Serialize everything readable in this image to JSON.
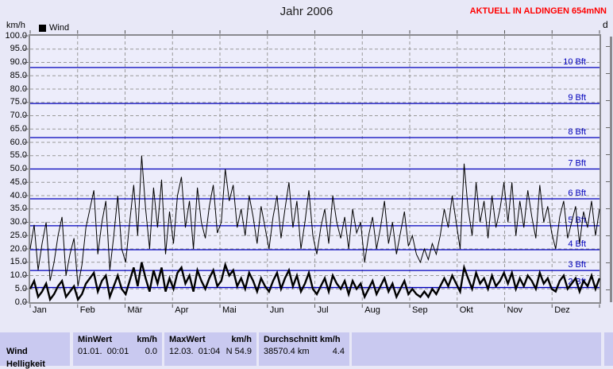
{
  "header": {
    "title": "Jahr 2006",
    "status": "AKTUELL IN ALDINGEN 654mNN",
    "status_color": "#FF0000"
  },
  "adjacent": {
    "label": "d"
  },
  "colors": {
    "background": "#E8E8F7",
    "plot_background": "#EDEDFB",
    "plot_border": "#8a8a8f",
    "grid": "#9a9a9a",
    "beaufort_blue": "#0000BB",
    "series": "#000000",
    "table_cell": "#C9C9F0"
  },
  "chart_data": {
    "type": "line",
    "title": "Jahr 2006",
    "ylabel": "km/h",
    "ylim": [
      0,
      100
    ],
    "y_tick_step": 5,
    "y_tick_labels": [
      "100.0",
      "95.0",
      "90.0",
      "85.0",
      "80.0",
      "75.0",
      "70.0",
      "65.0",
      "60.0",
      "55.0",
      "50.0",
      "45.0",
      "40.0",
      "35.0",
      "30.0",
      "25.0",
      "20.0",
      "15.0",
      "10.0",
      "5.0",
      "0.0"
    ],
    "x_categories": [
      "Jan",
      "Feb",
      "Mär",
      "Apr",
      "Mai",
      "Jun",
      "Jul",
      "Aug",
      "Sep",
      "Okt",
      "Nov",
      "Dez"
    ],
    "grid": "dashed",
    "legend_label": "Wind",
    "legend_position": "top-left",
    "beaufort_lines": [
      {
        "label": "2 Bft",
        "kmh": 5.5
      },
      {
        "label": "3 Bft",
        "kmh": 11.9
      },
      {
        "label": "4 Bft",
        "kmh": 19.7
      },
      {
        "label": "5 Bft",
        "kmh": 28.7
      },
      {
        "label": "6 Bft",
        "kmh": 38.8
      },
      {
        "label": "7 Bft",
        "kmh": 50.0
      },
      {
        "label": "8 Bft",
        "kmh": 61.8
      },
      {
        "label": "9 Bft",
        "kmh": 74.6
      },
      {
        "label": "10 Bft",
        "kmh": 88.1
      }
    ],
    "series": [
      {
        "name": "wind-peak",
        "stroke_width": 1,
        "color": "#000000",
        "values": [
          20,
          29,
          12,
          22,
          30,
          8,
          15,
          25,
          32,
          10,
          18,
          24,
          6,
          14,
          28,
          35,
          42,
          18,
          30,
          38,
          12,
          25,
          40,
          20,
          15,
          30,
          44,
          25,
          55,
          35,
          20,
          43,
          28,
          46,
          18,
          34,
          22,
          40,
          47,
          28,
          38,
          20,
          43,
          30,
          24,
          36,
          44,
          26,
          30,
          50,
          38,
          44,
          28,
          35,
          25,
          40,
          32,
          22,
          36,
          28,
          20,
          32,
          40,
          24,
          35,
          45,
          28,
          38,
          20,
          30,
          42,
          25,
          18,
          28,
          35,
          22,
          40,
          30,
          24,
          32,
          20,
          35,
          26,
          30,
          15,
          25,
          32,
          20,
          28,
          38,
          22,
          30,
          18,
          26,
          34,
          21,
          25,
          18,
          15,
          20,
          16,
          22,
          18,
          25,
          35,
          28,
          40,
          30,
          20,
          52,
          35,
          25,
          45,
          30,
          38,
          24,
          40,
          28,
          35,
          45,
          30,
          45,
          25,
          38,
          28,
          42,
          32,
          24,
          44,
          30,
          36,
          26,
          20,
          32,
          38,
          24,
          30,
          36,
          22,
          34,
          28,
          38,
          25,
          35
        ]
      },
      {
        "name": "wind-average",
        "stroke_width": 2.4,
        "color": "#000000",
        "values": [
          5,
          8,
          2,
          4,
          7,
          1,
          3,
          6,
          8,
          2,
          4,
          6,
          1,
          3,
          7,
          9,
          11,
          4,
          8,
          10,
          2,
          6,
          10,
          5,
          3,
          8,
          13,
          6,
          15,
          9,
          4,
          12,
          7,
          13,
          4,
          9,
          5,
          11,
          13,
          7,
          10,
          4,
          12,
          8,
          5,
          9,
          12,
          6,
          8,
          14,
          10,
          12,
          6,
          9,
          5,
          11,
          8,
          4,
          9,
          6,
          4,
          8,
          11,
          5,
          9,
          12,
          6,
          10,
          4,
          7,
          11,
          5,
          3,
          6,
          9,
          4,
          10,
          7,
          5,
          8,
          3,
          8,
          5,
          7,
          2,
          5,
          8,
          3,
          6,
          9,
          4,
          7,
          2,
          5,
          8,
          3,
          5,
          3,
          2,
          4,
          2,
          5,
          3,
          6,
          9,
          6,
          10,
          7,
          4,
          13,
          9,
          5,
          11,
          7,
          9,
          5,
          10,
          6,
          8,
          11,
          7,
          11,
          5,
          9,
          6,
          10,
          8,
          5,
          11,
          7,
          9,
          5,
          4,
          8,
          10,
          5,
          7,
          9,
          4,
          8,
          6,
          10,
          5,
          9
        ]
      }
    ]
  },
  "summary_table": {
    "rows": [
      {
        "label": "Wind"
      },
      {
        "label": "Helligkeit"
      }
    ],
    "min_header": "MinWert",
    "min_unit": "km/h",
    "min_date": "01.01.  00:01",
    "min_value": "0.0",
    "max_header": "MaxWert",
    "max_unit": "km/h",
    "max_date": "12.03.  01:04",
    "max_value": "N 54.9",
    "avg_header": "Durchschnitt km/h",
    "avg_distance": "38570.4 km",
    "avg_value": "4.4"
  }
}
